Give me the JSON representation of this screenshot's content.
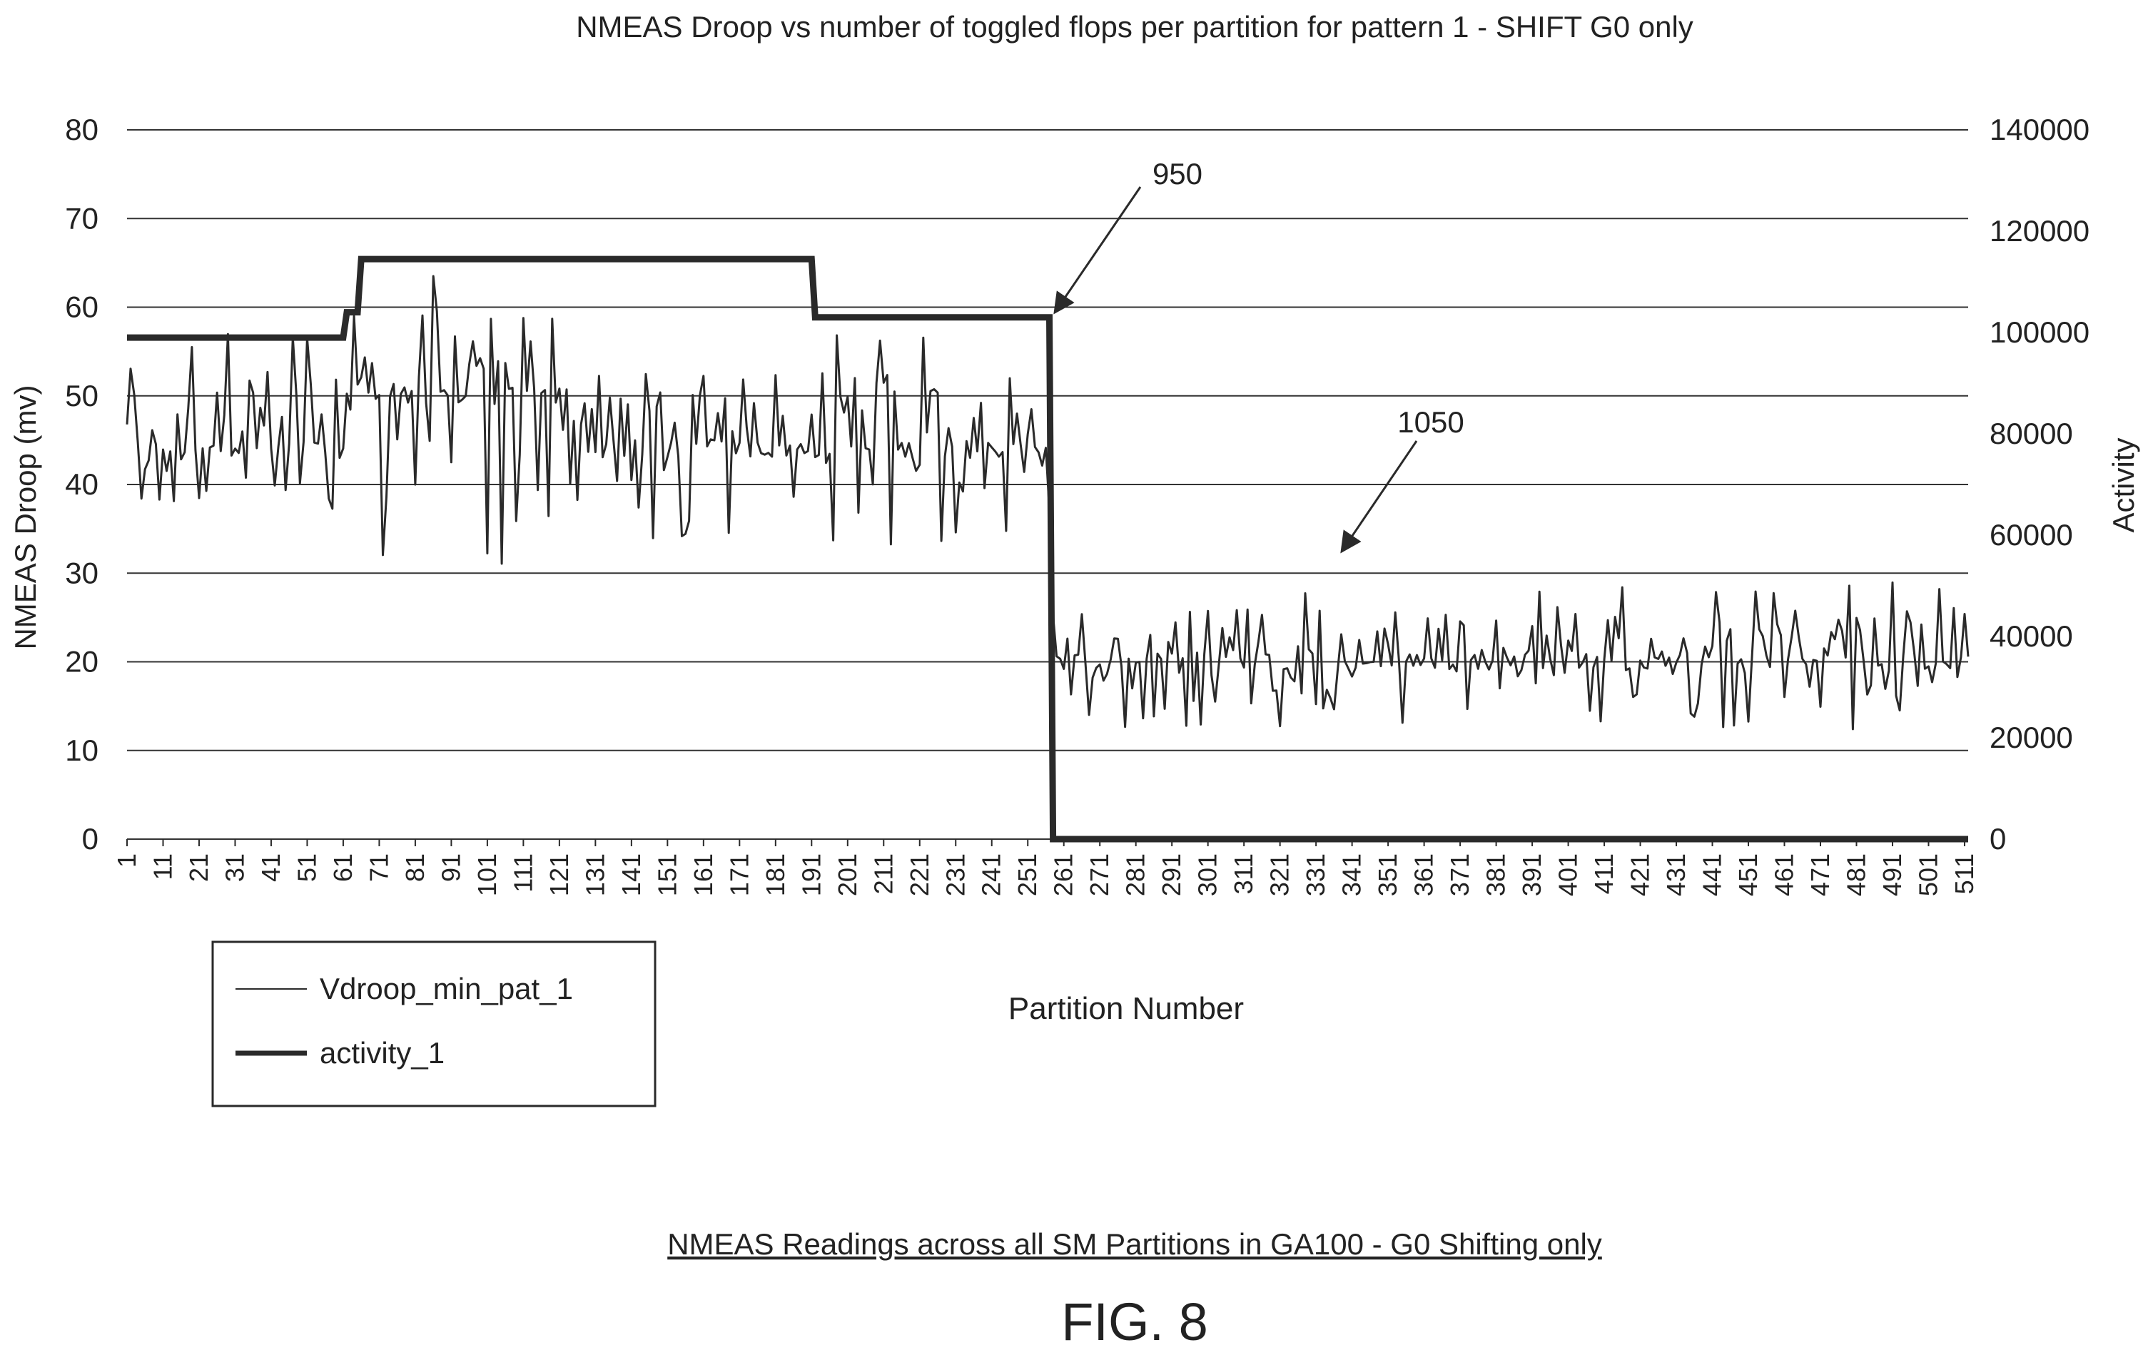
{
  "figure": {
    "caption": "NMEAS Readings across all SM Partitions in GA100 - G0 Shifting only",
    "label": "FIG. 8"
  },
  "colors": {
    "ink": "#2a2a2a",
    "grid": "#333333",
    "background": "#ffffff"
  },
  "chart_data": {
    "type": "line",
    "title": "NMEAS Droop vs number of toggled flops per partition for pattern 1 - SHIFT G0 only",
    "xlabel": "Partition Number",
    "ylabel": "NMEAS Droop (mv)",
    "y2label": "Activity",
    "x_range": [
      1,
      512
    ],
    "ylim": [
      0,
      80
    ],
    "y2lim": [
      0,
      140000
    ],
    "y_ticks": [
      0,
      10,
      20,
      30,
      40,
      50,
      60,
      70,
      80
    ],
    "y2_ticks": [
      0,
      20000,
      40000,
      60000,
      80000,
      100000,
      120000,
      140000
    ],
    "x_tick_labels": [
      "1",
      "11",
      "21",
      "31",
      "41",
      "51",
      "61",
      "71",
      "81",
      "91",
      "101",
      "111",
      "121",
      "131",
      "141",
      "151",
      "161",
      "171",
      "181",
      "191",
      "201",
      "211",
      "221",
      "231",
      "241",
      "251",
      "261",
      "271",
      "281",
      "291",
      "301",
      "311",
      "321",
      "331",
      "341",
      "351",
      "361",
      "371",
      "381",
      "391",
      "401",
      "411",
      "421",
      "431",
      "441",
      "451",
      "461",
      "471",
      "481",
      "491",
      "501",
      "511"
    ],
    "grid": "horizontal",
    "legend_position": "bottom-left",
    "series": [
      {
        "name": "Vdroop_min_pat_1",
        "axis": "left",
        "style": "thin",
        "segments": [
          {
            "from": 1,
            "to": 63,
            "min": 35,
            "max": 57,
            "base": 44
          },
          {
            "from": 64,
            "to": 128,
            "min": 31,
            "max": 64,
            "base": 50
          },
          {
            "from": 129,
            "to": 257,
            "min": 33,
            "max": 57,
            "base": 44
          },
          {
            "from": 258,
            "to": 512,
            "min": 12,
            "max": 29,
            "base": 20
          }
        ]
      },
      {
        "name": "activity_1",
        "axis": "right",
        "style": "thick",
        "x": [
          1,
          61,
          62,
          65,
          66,
          191,
          192,
          257,
          258,
          512
        ],
        "values": [
          99000,
          99000,
          104000,
          104000,
          114500,
          114500,
          103000,
          103000,
          0,
          0
        ]
      }
    ],
    "annotations": [
      {
        "text": "950",
        "points_to": {
          "x": 257,
          "y2": 103000
        }
      },
      {
        "text": "1050",
        "points_to": {
          "x": 330,
          "y": 32
        }
      }
    ]
  }
}
